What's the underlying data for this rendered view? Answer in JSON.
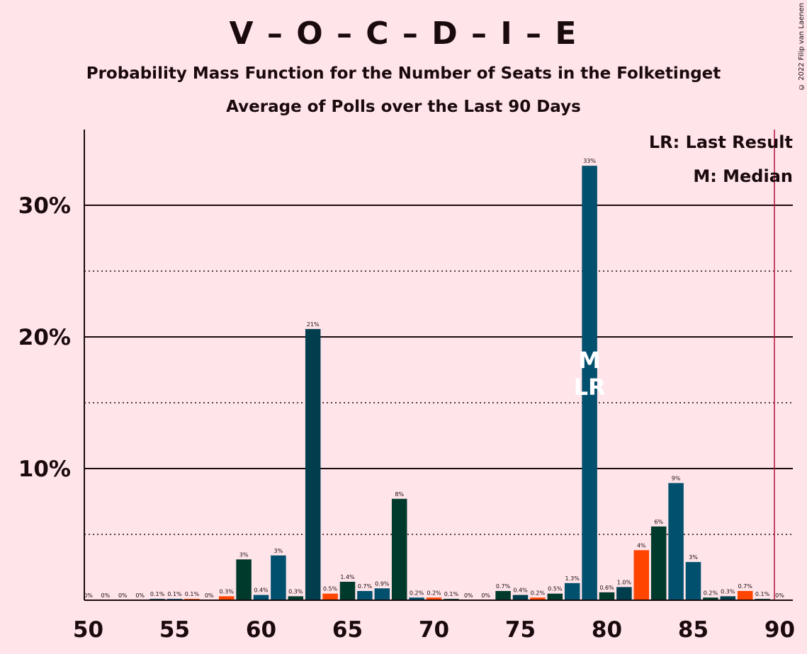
{
  "title": "V – O – C – D – I – E",
  "subtitle": "Probability Mass Function for the Number of Seats in the Folketinget",
  "subtitle2": "Average of Polls over the Last 90 Days",
  "copyright": "© 2022 Filip van Laenen",
  "legend": {
    "lr": "LR: Last Result",
    "m": "M: Median"
  },
  "markers": {
    "median": "M",
    "last_result": "LR"
  },
  "colors": {
    "background": "#FFE4E9",
    "palette": [
      "#00506E",
      "#FF4500",
      "#003A2C",
      "#00506E",
      "#003E4E"
    ],
    "majority_line": "#B0133B"
  },
  "chart_data": {
    "type": "bar",
    "x": [
      50,
      51,
      52,
      53,
      54,
      55,
      56,
      57,
      58,
      59,
      60,
      61,
      62,
      63,
      64,
      65,
      66,
      67,
      68,
      69,
      70,
      71,
      72,
      73,
      74,
      75,
      76,
      77,
      78,
      79,
      80,
      81,
      82,
      83,
      84,
      85,
      86,
      87,
      88,
      89,
      90
    ],
    "values": [
      0,
      0,
      0,
      0,
      0.1,
      0.1,
      0.1,
      0,
      0.3,
      3.1,
      0.4,
      3.4,
      0.3,
      20.6,
      0.5,
      1.4,
      0.7,
      0.9,
      7.7,
      0.2,
      0.2,
      0.1,
      0,
      0,
      0.7,
      0.4,
      0.2,
      0.5,
      1.3,
      33.0,
      0.6,
      1.0,
      3.8,
      5.6,
      8.9,
      2.9,
      0.2,
      0.3,
      0.7,
      0.1,
      0
    ],
    "labels": [
      "0%",
      "0%",
      "0%",
      "0%",
      "0.1%",
      "0.1%",
      "0.1%",
      "0%",
      "0.3%",
      "3%",
      "0.4%",
      "3%",
      "0.3%",
      "21%",
      "0.5%",
      "1.4%",
      "0.7%",
      "0.9%",
      "8%",
      "0.2%",
      "0.2%",
      "0.1%",
      "0%",
      "0%",
      "0.7%",
      "0.4%",
      "0.2%",
      "0.5%",
      "1.3%",
      "33%",
      "0.6%",
      "1.0%",
      "4%",
      "6%",
      "9%",
      "3%",
      "0.2%",
      "0.3%",
      "0.7%",
      "0.1%",
      "0%"
    ],
    "color_index": [
      0,
      1,
      2,
      3,
      4,
      0,
      1,
      2,
      1,
      2,
      0,
      0,
      2,
      4,
      1,
      2,
      0,
      0,
      2,
      0,
      1,
      2,
      0,
      0,
      2,
      4,
      1,
      2,
      0,
      0,
      2,
      4,
      1,
      2,
      0,
      0,
      2,
      4,
      1,
      2,
      0
    ],
    "xticks": [
      50,
      55,
      60,
      65,
      70,
      75,
      80,
      85,
      90
    ],
    "xtick_labels": [
      "50",
      "55",
      "60",
      "65",
      "70",
      "75",
      "80",
      "85",
      "90"
    ],
    "yticks": [
      10,
      20,
      30
    ],
    "ytick_labels": [
      "10%",
      "20%",
      "30%"
    ],
    "ylim": [
      0,
      36
    ],
    "xlim": [
      49.5,
      90.5
    ],
    "median_seat": 79,
    "last_result_seat": 79,
    "majority_seat": 90
  }
}
